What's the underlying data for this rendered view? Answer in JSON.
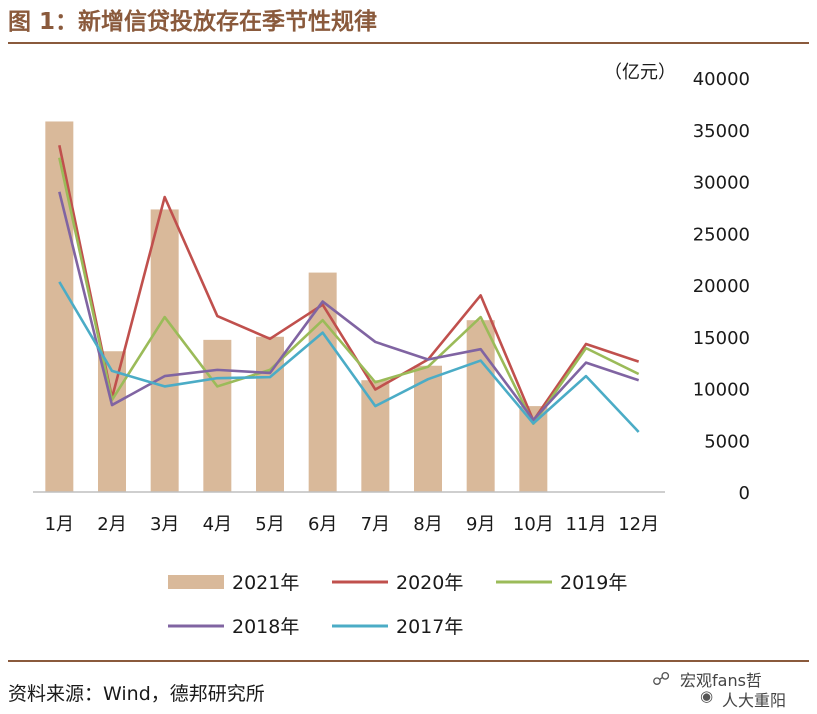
{
  "header": {
    "title": "图 1：新增信贷投放存在季节性规律"
  },
  "footer": {
    "source": "资料来源：Wind，德邦研究所"
  },
  "watermark": {
    "line1": "宏观fans哲",
    "line2": "人大重阳"
  },
  "chart_data": {
    "type": "bar+line",
    "y_unit_label": "（亿元）",
    "ylim": [
      0,
      40000
    ],
    "y_ticks": [
      "40000",
      "35000",
      "30000",
      "25000",
      "20000",
      "15000",
      "10000",
      "5000",
      "0"
    ],
    "y_axis_position": "right",
    "categories": [
      "1月",
      "2月",
      "3月",
      "4月",
      "5月",
      "6月",
      "7月",
      "8月",
      "9月",
      "10月",
      "11月",
      "12月"
    ],
    "bar_series": {
      "name": "2021年",
      "color": "#d9b99a",
      "values": [
        35800,
        13600,
        27300,
        14700,
        15000,
        21200,
        10800,
        12200,
        16600,
        8300,
        null,
        null
      ]
    },
    "line_series": [
      {
        "name": "2020年",
        "color": "#c0504d",
        "values": [
          33500,
          9100,
          28500,
          17000,
          14800,
          18100,
          9900,
          12800,
          19000,
          6900,
          14300,
          12600
        ]
      },
      {
        "name": "2019年",
        "color": "#9bbb59",
        "values": [
          32300,
          8900,
          16900,
          10200,
          11800,
          16600,
          10600,
          12100,
          16900,
          6600,
          13900,
          11400
        ]
      },
      {
        "name": "2018年",
        "color": "#8064a2",
        "values": [
          29000,
          8400,
          11200,
          11800,
          11500,
          18400,
          14500,
          12800,
          13800,
          6970,
          12500,
          10800
        ]
      },
      {
        "name": "2017年",
        "color": "#4bacc6",
        "values": [
          20300,
          11700,
          10200,
          11000,
          11100,
          15400,
          8300,
          10900,
          12700,
          6630,
          11200,
          5800
        ]
      }
    ],
    "legend_placement": "bottom",
    "grid": false
  }
}
